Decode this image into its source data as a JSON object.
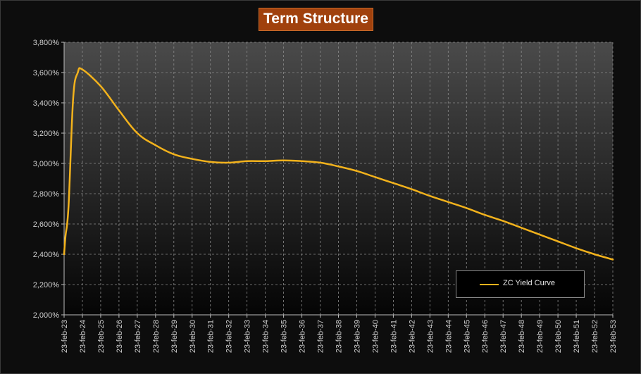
{
  "title": "Term Structure",
  "colors": {
    "series": "#f2b21c",
    "title_bg": "#a0410d"
  },
  "chart_data": {
    "type": "line",
    "title": "Term Structure",
    "xlabel": "",
    "ylabel": "",
    "ylim": [
      2.0,
      3.8
    ],
    "y_tick_labels": [
      "2,000%",
      "2,200%",
      "2,400%",
      "2,600%",
      "2,800%",
      "3,000%",
      "3,200%",
      "3,400%",
      "3,600%",
      "3,800%"
    ],
    "x_tick_labels": [
      "23-feb-23",
      "23-feb-24",
      "23-feb-25",
      "23-feb-26",
      "23-feb-27",
      "23-feb-28",
      "23-feb-29",
      "23-feb-30",
      "23-feb-31",
      "23-feb-32",
      "23-feb-33",
      "23-feb-34",
      "23-feb-35",
      "23-feb-36",
      "23-feb-37",
      "23-feb-38",
      "23-feb-39",
      "23-feb-40",
      "23-feb-41",
      "23-feb-42",
      "23-feb-43",
      "23-feb-44",
      "23-feb-45",
      "23-feb-46",
      "23-feb-47",
      "23-feb-48",
      "23-feb-49",
      "23-feb-50",
      "23-feb-51",
      "23-feb-52",
      "23-feb-53"
    ],
    "grid": true,
    "legend_position": "bottom-right",
    "series": [
      {
        "name": "ZC Yield Curve",
        "x": [
          "2023-02-23",
          "2023-03-23",
          "2023-05-23",
          "2023-08-23",
          "2023-11-23",
          "2024-02-23",
          "2025-02-23",
          "2026-02-23",
          "2027-02-23",
          "2028-02-23",
          "2029-02-23",
          "2030-02-23",
          "2031-02-23",
          "2032-02-23",
          "2033-02-23",
          "2034-02-23",
          "2035-02-23",
          "2036-02-23",
          "2037-02-23",
          "2038-02-23",
          "2039-02-23",
          "2040-02-23",
          "2041-02-23",
          "2042-02-23",
          "2043-02-23",
          "2044-02-23",
          "2045-02-23",
          "2046-02-23",
          "2047-02-23",
          "2048-02-23",
          "2049-02-23",
          "2050-02-23",
          "2051-02-23",
          "2052-02-23",
          "2053-02-23"
        ],
        "y": [
          2.4,
          2.52,
          2.72,
          3.43,
          3.6,
          3.62,
          3.51,
          3.35,
          3.2,
          3.12,
          3.06,
          3.03,
          3.01,
          3.005,
          3.015,
          3.015,
          3.02,
          3.015,
          3.005,
          2.98,
          2.95,
          2.91,
          2.87,
          2.83,
          2.785,
          2.745,
          2.705,
          2.66,
          2.62,
          2.575,
          2.53,
          2.485,
          2.44,
          2.4,
          2.365
        ]
      }
    ]
  }
}
